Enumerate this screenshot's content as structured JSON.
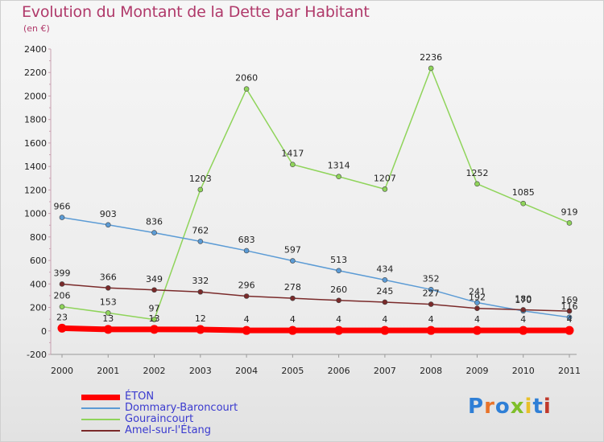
{
  "title": "Evolution du Montant de la Dette par Habitant",
  "subtitle": "(en €)",
  "logo": {
    "text": "Proxiti",
    "colors": [
      "#2f7fd6",
      "#e8732a",
      "#2f7fd6",
      "#7fbf2a",
      "#e8c02a",
      "#2f7fd6",
      "#c0392b"
    ]
  },
  "chart_data": {
    "type": "line",
    "title": "Evolution du Montant de la Dette par Habitant",
    "ylabel": "(en €)",
    "xlabel": "",
    "x": [
      "2000",
      "2001",
      "2002",
      "2003",
      "2004",
      "2005",
      "2006",
      "2007",
      "2008",
      "2009",
      "2010",
      "2011"
    ],
    "ylim": [
      -200,
      2400
    ],
    "yticks": [
      "-200",
      "0",
      "200",
      "400",
      "600",
      "800",
      "1000",
      "1200",
      "1400",
      "1600",
      "1800",
      "2000",
      "2200",
      "2400"
    ],
    "grid": false,
    "legend": "bottom-left",
    "series": [
      {
        "name": "Gouraincourt",
        "color": "#8fd45a",
        "lineWidth": 1.5,
        "values": [
          206,
          153,
          97,
          1203,
          2060,
          1417,
          1314,
          1207,
          2236,
          1252,
          1085,
          919
        ],
        "labels": [
          "206",
          "153",
          "97",
          "1203",
          "2060",
          "1417",
          "1314",
          "1207",
          "2236",
          "1252",
          "1085",
          "919"
        ]
      },
      {
        "name": "Dommary-Baroncourt",
        "color": "#5b9bd5",
        "lineWidth": 1.5,
        "values": [
          966,
          903,
          836,
          762,
          683,
          597,
          513,
          434,
          352,
          241,
          170,
          116
        ],
        "labels": [
          "966",
          "903",
          "836",
          "762",
          "683",
          "597",
          "513",
          "434",
          "352",
          "241",
          "170",
          "116"
        ]
      },
      {
        "name": "Amel-sur-l'Étang",
        "color": "#7a2a2a",
        "lineWidth": 1.5,
        "values": [
          399,
          366,
          349,
          332,
          296,
          278,
          260,
          245,
          227,
          192,
          180,
          169
        ],
        "labels": [
          "399",
          "366",
          "349",
          "332",
          "296",
          "278",
          "260",
          "245",
          "227",
          "192",
          "180",
          "169"
        ]
      },
      {
        "name": "ÉTON",
        "color": "#ff0000",
        "lineWidth": 7,
        "values": [
          23,
          13,
          13,
          12,
          4,
          4,
          4,
          4,
          4,
          4,
          4,
          4
        ],
        "labels": [
          "23",
          "13",
          "13",
          "12",
          "4",
          "4",
          "4",
          "4",
          "4",
          "4",
          "4",
          "4"
        ]
      }
    ],
    "legend_order": [
      "ÉTON",
      "Dommary-Baroncourt",
      "Gouraincourt",
      "Amel-sur-l'Étang"
    ]
  }
}
